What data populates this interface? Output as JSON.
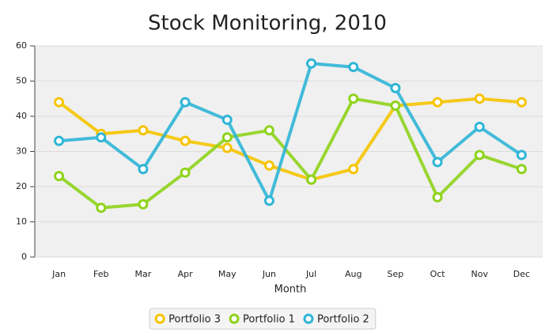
{
  "chart_data": {
    "type": "line",
    "title": "Stock Monitoring, 2010",
    "x_label": "Month",
    "categories": [
      "Jan",
      "Feb",
      "Mar",
      "Apr",
      "May",
      "Jun",
      "Jul",
      "Aug",
      "Sep",
      "Oct",
      "Nov",
      "Dec"
    ],
    "series": [
      {
        "name": "Portfolio 3",
        "color": "#f5c400",
        "values": [
          44,
          35,
          36,
          33,
          31,
          26,
          22,
          25,
          43,
          44,
          45,
          44
        ]
      },
      {
        "name": "Portfolio 1",
        "color": "#8ed31b",
        "values": [
          23,
          14,
          15,
          24,
          34,
          36,
          22,
          45,
          43,
          17,
          29,
          25
        ]
      },
      {
        "name": "Portfolio 2",
        "color": "#2fb5d6",
        "values": [
          33,
          34,
          25,
          44,
          39,
          16,
          55,
          54,
          48,
          27,
          37,
          29
        ]
      }
    ],
    "ylim": [
      0,
      60
    ],
    "yticks": [
      0,
      10,
      20,
      30,
      40,
      50,
      60
    ],
    "grid": true,
    "legend": "bottom"
  }
}
